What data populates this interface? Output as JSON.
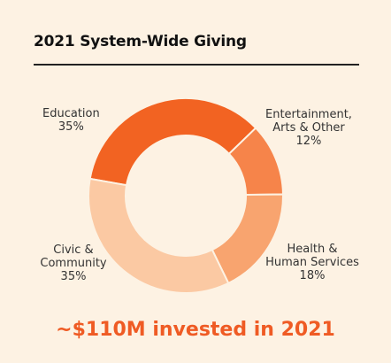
{
  "chart_data": {
    "type": "pie",
    "title": "2021 System-Wide Giving",
    "slices": [
      {
        "label": "Education",
        "percent_label": "35%",
        "value": 35,
        "color": "#f26322"
      },
      {
        "label_lines": [
          "Entertainment,",
          "Arts & Other"
        ],
        "percent_label": "12%",
        "value": 12,
        "color": "#f6844a"
      },
      {
        "label_lines": [
          "Health &",
          "Human Services"
        ],
        "percent_label": "18%",
        "value": 18,
        "color": "#f8a46f"
      },
      {
        "label_lines": [
          "Civic &",
          "Community"
        ],
        "percent_label": "35%",
        "value": 35,
        "color": "#fbc9a3"
      }
    ]
  },
  "footer_text": "~$110M invested in 2021"
}
